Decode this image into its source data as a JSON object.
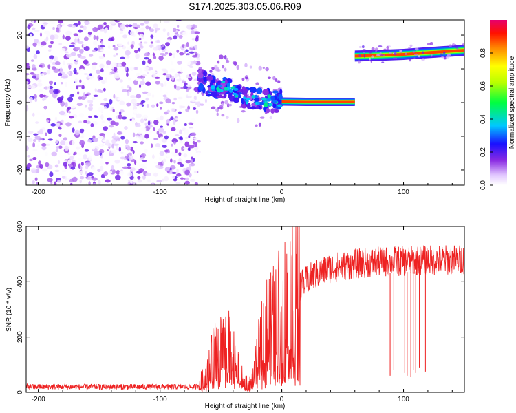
{
  "title": "S174.2025.303.05.06.R09",
  "chart_data": [
    {
      "type": "heatmap",
      "xlabel": "Height of straight line (km)",
      "ylabel": "Frequency (Hz)",
      "xlim": [
        -210,
        150
      ],
      "ylim": [
        -24.5,
        24.5
      ],
      "xticks": [
        -200,
        -100,
        0,
        100
      ],
      "yticks": [
        -20,
        -10,
        0,
        10,
        20
      ],
      "noise_region_x": [
        -210,
        -68
      ],
      "signal_tracks": [
        {
          "name": "descending scatter",
          "points": [
            [
              -68,
              7
            ],
            [
              -55,
              4
            ],
            [
              -45,
              5
            ],
            [
              -38,
              3
            ],
            [
              -30,
              1.5
            ],
            [
              -20,
              0.8
            ],
            [
              -10,
              0.5
            ],
            [
              0,
              0.3
            ]
          ]
        },
        {
          "name": "steady line",
          "points": [
            [
              0,
              0.3
            ],
            [
              20,
              0.2
            ],
            [
              40,
              0.2
            ],
            [
              60,
              0.2
            ]
          ]
        },
        {
          "name": "upper line",
          "points": [
            [
              60,
              13.8
            ],
            [
              80,
              14.0
            ],
            [
              100,
              14.3
            ],
            [
              120,
              14.8
            ],
            [
              150,
              15.5
            ]
          ]
        }
      ],
      "colorbar": {
        "label": "Normalized spectral amplitude",
        "range": [
          0.0,
          1.0
        ],
        "ticks": [
          "0.0",
          "0.2",
          "0.4",
          "0.6",
          "0.8"
        ]
      }
    },
    {
      "type": "line",
      "xlabel": "Height of straight line (km)",
      "ylabel": "SNR (10 * v/v)",
      "xlim": [
        -210,
        150
      ],
      "ylim": [
        0,
        600
      ],
      "xticks": [
        -200,
        -100,
        0,
        100
      ],
      "yticks": [
        0,
        200,
        400,
        600
      ],
      "color": "#ee2222",
      "series": [
        {
          "name": "SNR",
          "profile": [
            [
              -210,
              20
            ],
            [
              -70,
              20
            ],
            [
              -62,
              60
            ],
            [
              -55,
              140
            ],
            [
              -48,
              180
            ],
            [
              -42,
              150
            ],
            [
              -35,
              80
            ],
            [
              -30,
              20
            ],
            [
              -25,
              30
            ],
            [
              -20,
              120
            ],
            [
              -15,
              220
            ],
            [
              -10,
              240
            ],
            [
              -5,
              270
            ],
            [
              0,
              300
            ],
            [
              5,
              330
            ],
            [
              10,
              360
            ],
            [
              15,
              385
            ],
            [
              25,
              420
            ],
            [
              40,
              450
            ],
            [
              60,
              465
            ],
            [
              80,
              472
            ],
            [
              100,
              475
            ],
            [
              120,
              478
            ],
            [
              150,
              480
            ]
          ]
        }
      ],
      "dips": [
        [
          89,
          60
        ],
        [
          92,
          80
        ],
        [
          101,
          70
        ],
        [
          103,
          60
        ],
        [
          106,
          55
        ],
        [
          108,
          80
        ],
        [
          110,
          70
        ],
        [
          113,
          90
        ],
        [
          118,
          75
        ]
      ]
    }
  ]
}
